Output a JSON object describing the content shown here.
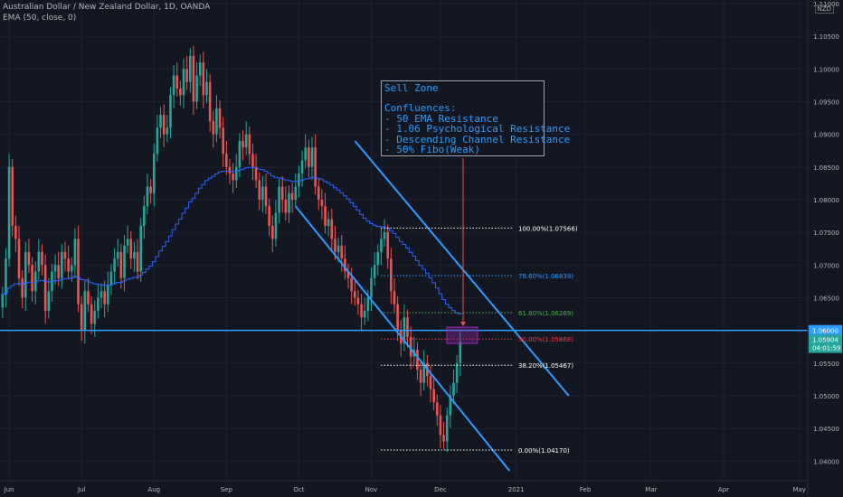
{
  "header": {
    "title": "Australian Dollar / New Zealand Dollar, 1D, OANDA",
    "indicator": "EMA (50, close, 0)",
    "currency": "NZD"
  },
  "sell_zone": {
    "title": "Sell Zone",
    "lines": [
      "Confluences:",
      "- 50 EMA Resistance",
      "- 1.06 Psychological Resistance",
      "- Descending Channel Resistance",
      "- 50% Fibo(Weak)"
    ]
  },
  "chart_data": {
    "type": "candlestick",
    "ylim": [
      1.037,
      1.11
    ],
    "y_ticks": [
      "1.04000",
      "1.04500",
      "1.05000",
      "1.05500",
      "1.06500",
      "1.07000",
      "1.07500",
      "1.08000",
      "1.08500",
      "1.09000",
      "1.09500",
      "1.10000",
      "1.10500",
      "1.11000"
    ],
    "x_ticks": [
      {
        "label": "Jun",
        "i": 2
      },
      {
        "label": "Jul",
        "i": 24
      },
      {
        "label": "Aug",
        "i": 46
      },
      {
        "label": "Sep",
        "i": 68
      },
      {
        "label": "Oct",
        "i": 90
      },
      {
        "label": "Nov",
        "i": 112
      },
      {
        "label": "Dec",
        "i": 133
      },
      {
        "label": "2021",
        "i": 156
      },
      {
        "label": "Feb",
        "i": 177
      },
      {
        "label": "Mar",
        "i": 197
      },
      {
        "label": "Apr",
        "i": 219
      },
      {
        "label": "May",
        "i": 242
      }
    ],
    "closes": [
      1.0655,
      1.071,
      1.085,
      1.076,
      1.074,
      1.068,
      1.065,
      1.072,
      1.07,
      1.066,
      1.069,
      1.072,
      1.07,
      1.063,
      1.066,
      1.069,
      1.07,
      1.068,
      1.072,
      1.071,
      1.069,
      1.07,
      1.074,
      1.064,
      1.06,
      1.066,
      1.064,
      1.061,
      1.063,
      1.065,
      1.066,
      1.064,
      1.067,
      1.069,
      1.071,
      1.072,
      1.068,
      1.073,
      1.074,
      1.071,
      1.072,
      1.069,
      1.076,
      1.079,
      1.082,
      1.081,
      1.087,
      1.091,
      1.093,
      1.09,
      1.091,
      1.096,
      1.099,
      1.097,
      1.096,
      1.1,
      1.098,
      1.102,
      1.095,
      1.099,
      1.101,
      1.096,
      1.098,
      1.092,
      1.09,
      1.094,
      1.091,
      1.087,
      1.085,
      1.084,
      1.083,
      1.085,
      1.089,
      1.088,
      1.09,
      1.087,
      1.085,
      1.083,
      1.08,
      1.082,
      1.079,
      1.076,
      1.074,
      1.078,
      1.082,
      1.08,
      1.078,
      1.081,
      1.08,
      1.082,
      1.084,
      1.086,
      1.088,
      1.085,
      1.088,
      1.082,
      1.08,
      1.079,
      1.076,
      1.077,
      1.074,
      1.072,
      1.073,
      1.071,
      1.069,
      1.068,
      1.066,
      1.065,
      1.064,
      1.062,
      1.063,
      1.065,
      1.068,
      1.07,
      1.072,
      1.074,
      1.075,
      1.071,
      1.066,
      1.064,
      1.06,
      1.058,
      1.062,
      1.059,
      1.056,
      1.057,
      1.054,
      1.052,
      1.055,
      1.053,
      1.051,
      1.049,
      1.047,
      1.044,
      1.043,
      1.047,
      1.05,
      1.052,
      1.055,
      1.0582
    ],
    "channel": {
      "upper": [
        {
          "i": 107,
          "y": 1.089
        },
        {
          "i": 172,
          "y": 1.05
        }
      ],
      "lower": [
        {
          "i": 89,
          "y": 1.079
        },
        {
          "i": 154,
          "y": 1.0385
        }
      ]
    },
    "fibonacci": [
      {
        "label": "100.00%(1.07566)",
        "y": 1.07566,
        "color": "#ffffff"
      },
      {
        "label": "78.60%(1.06839)",
        "y": 1.06839,
        "color": "#2d9cff"
      },
      {
        "label": "61.80%(1.06269)",
        "y": 1.06269,
        "color": "#4caf50"
      },
      {
        "label": "50.00%(1.05868)",
        "y": 1.05868,
        "color": "#f23645"
      },
      {
        "label": "38.20%(1.05467)",
        "y": 1.05467,
        "color": "#ffffff"
      },
      {
        "label": "0.00%(1.04170)",
        "y": 1.0417,
        "color": "#ffffff"
      }
    ],
    "horizontal_level": {
      "y": 1.06,
      "label": "1.06000",
      "color": "#2d9cff"
    },
    "price": {
      "y": 1.05904,
      "label": "1.05904",
      "countdown": "04:01:59",
      "color": "#26a69a"
    },
    "zone": {
      "y_top": 1.0605,
      "y_bottom": 1.058
    }
  }
}
